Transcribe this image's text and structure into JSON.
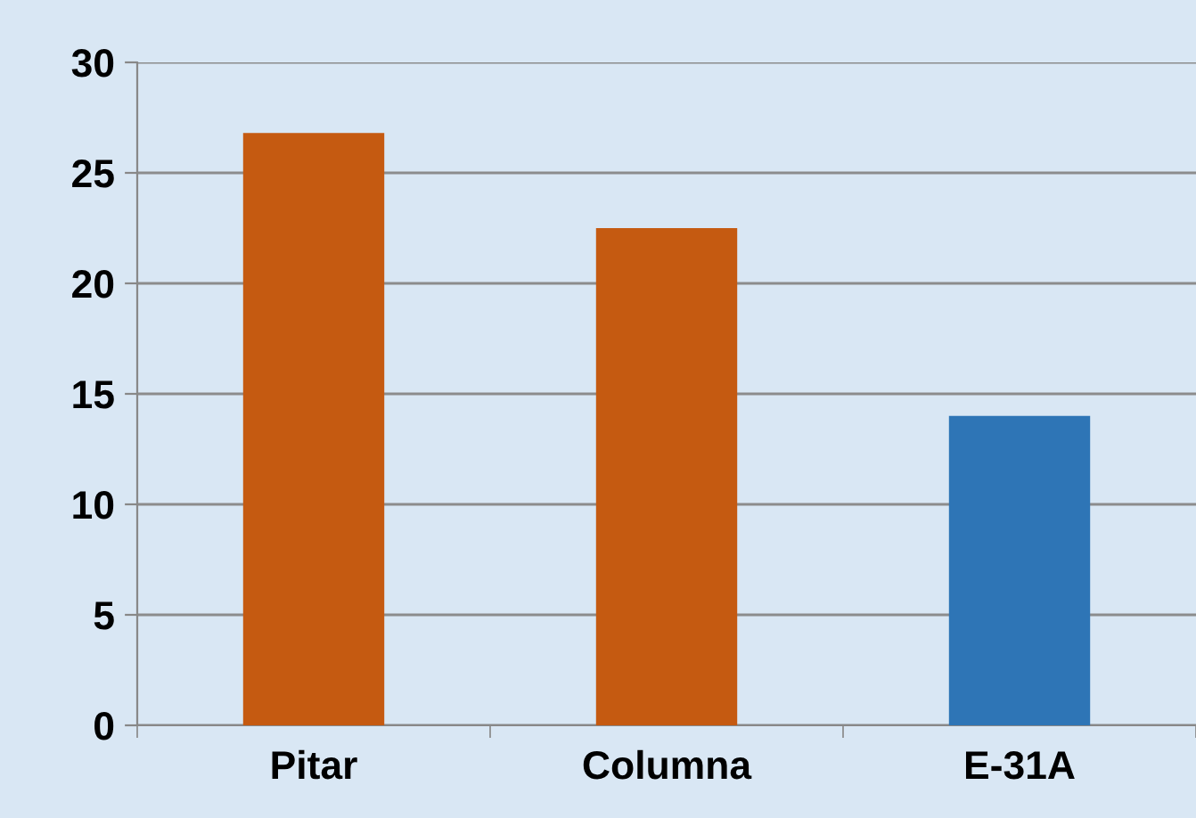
{
  "chart_data": {
    "type": "bar",
    "categories": [
      "Pitar",
      "Columna",
      "E-31A"
    ],
    "values": [
      26.8,
      22.5,
      14.0
    ],
    "colors": [
      "#c55a11",
      "#c55a11",
      "#2e75b6"
    ],
    "ylim": [
      0,
      30
    ],
    "yticks": [
      0,
      5,
      10,
      15,
      20,
      25,
      30
    ],
    "grid": "y"
  }
}
